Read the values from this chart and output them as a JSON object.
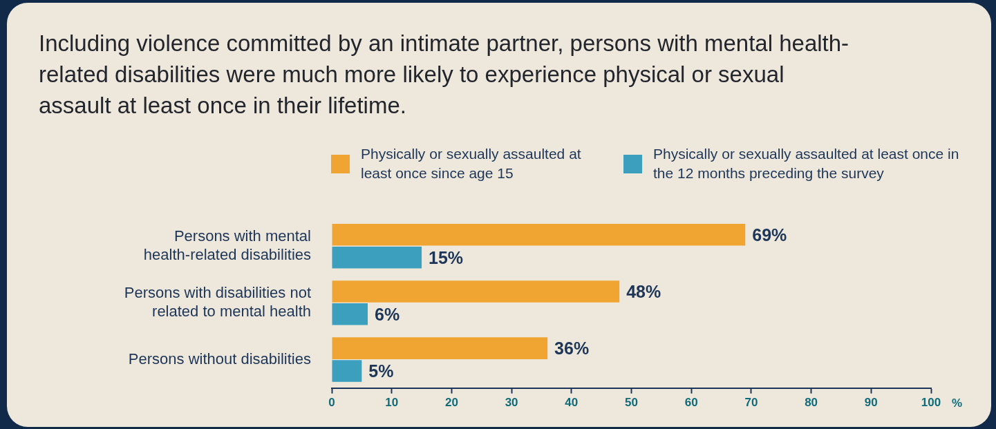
{
  "chart_data": {
    "type": "bar",
    "orientation": "horizontal",
    "title": "Including violence committed by an intimate partner, persons with mental health-related disabilities were much more likely to experience physical or sexual assault at least once in their lifetime.",
    "xlabel": "%",
    "categories": [
      "Persons with mental health-related disabilities",
      "Persons with disabilities not related to mental health",
      "Persons without disabilities"
    ],
    "series": [
      {
        "name": "Physically or sexually assaulted at least once since age 15",
        "color": "#f0a532",
        "values": [
          69,
          48,
          36
        ],
        "value_labels": [
          "69%",
          "48%",
          "36%"
        ]
      },
      {
        "name": "Physically or sexually assaulted at least once in the 12 months preceding the survey",
        "color": "#3b9fbd",
        "values": [
          15,
          6,
          5
        ],
        "value_labels": [
          "15%",
          "6%",
          "5%"
        ]
      }
    ],
    "xlim": [
      0,
      100
    ],
    "xticks": [
      0,
      10,
      20,
      30,
      40,
      50,
      60,
      70,
      80,
      90,
      100
    ],
    "grid": false,
    "legend": "top right"
  }
}
